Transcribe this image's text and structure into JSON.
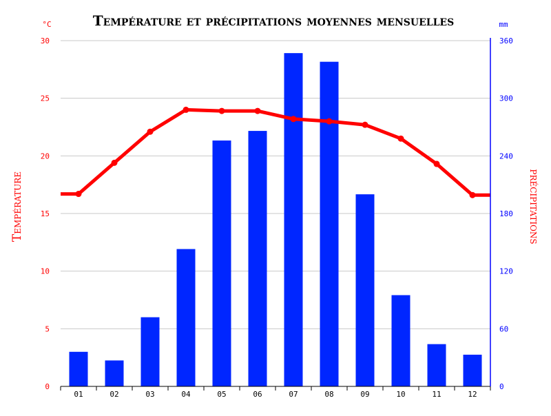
{
  "chart_data": {
    "type": "bar",
    "title": "Température et précipitations moyennes mensuelles",
    "categories": [
      "01",
      "02",
      "03",
      "04",
      "05",
      "06",
      "07",
      "08",
      "09",
      "10",
      "11",
      "12"
    ],
    "left_axis": {
      "label": "Température",
      "unit": "°C",
      "ylim": [
        0,
        30
      ],
      "ticks": [
        0,
        5,
        10,
        15,
        20,
        25,
        30
      ],
      "color": "#ff0000"
    },
    "right_axis": {
      "label": "précipitations",
      "unit": "mm",
      "ylim": [
        0,
        360
      ],
      "ticks": [
        0,
        60,
        120,
        180,
        240,
        300,
        360
      ],
      "color": "#0000ff"
    },
    "series": [
      {
        "type": "bar",
        "axis": "right",
        "color": "#0026ff",
        "values": [
          36,
          27,
          72,
          143,
          256,
          266,
          347,
          338,
          200,
          95,
          44,
          33
        ]
      },
      {
        "type": "line",
        "axis": "left",
        "color": "#ff0000",
        "values": [
          16.7,
          19.4,
          22.1,
          24.0,
          23.9,
          23.9,
          23.2,
          23.0,
          22.7,
          21.5,
          19.3,
          16.6
        ]
      }
    ],
    "grid": true
  }
}
